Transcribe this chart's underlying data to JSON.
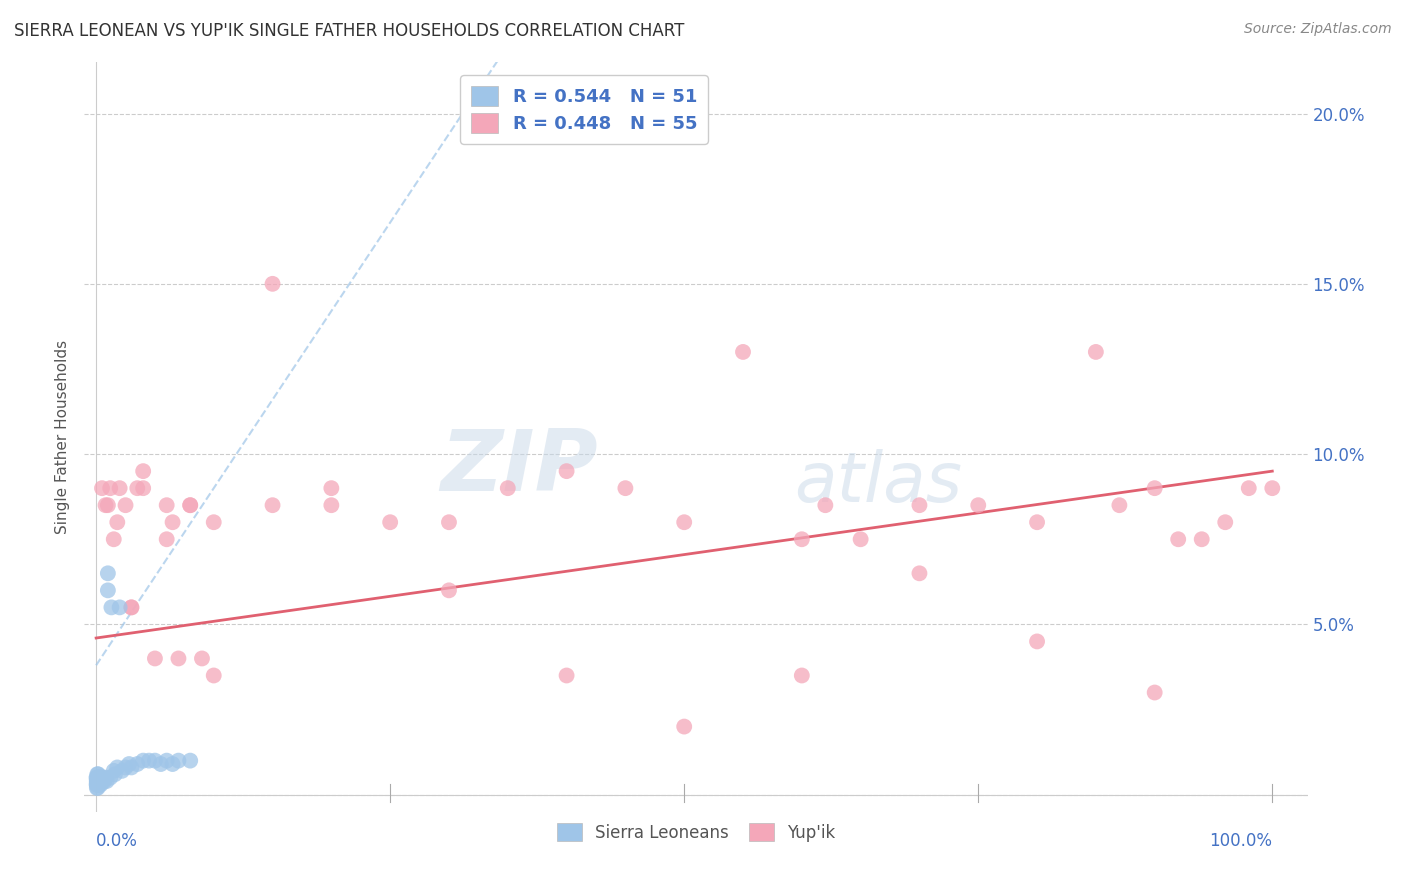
{
  "title": "SIERRA LEONEAN VS YUP'IK SINGLE FATHER HOUSEHOLDS CORRELATION CHART",
  "source": "Source: ZipAtlas.com",
  "ylabel": "Single Father Households",
  "blue_color": "#9fc5e8",
  "pink_color": "#f4a7b9",
  "trend_blue_dash": "#9fc5e8",
  "trend_pink_solid": "#e06070",
  "legend_r1": "R = 0.544",
  "legend_n1": "N = 51",
  "legend_r2": "R = 0.448",
  "legend_n2": "N = 55",
  "watermark_zip": "ZIP",
  "watermark_atlas": "atlas",
  "sierra_x": [
    0.0003,
    0.0004,
    0.0005,
    0.0006,
    0.0007,
    0.0008,
    0.0009,
    0.001,
    0.001,
    0.0012,
    0.0013,
    0.0014,
    0.0015,
    0.0016,
    0.0017,
    0.002,
    0.002,
    0.0022,
    0.0025,
    0.003,
    0.003,
    0.003,
    0.004,
    0.004,
    0.005,
    0.005,
    0.006,
    0.007,
    0.008,
    0.009,
    0.01,
    0.01,
    0.012,
    0.013,
    0.015,
    0.016,
    0.018,
    0.02,
    0.022,
    0.025,
    0.028,
    0.03,
    0.035,
    0.04,
    0.045,
    0.05,
    0.055,
    0.06,
    0.065,
    0.07,
    0.08
  ],
  "sierra_y": [
    0.005,
    0.003,
    0.004,
    0.002,
    0.005,
    0.003,
    0.004,
    0.006,
    0.003,
    0.004,
    0.002,
    0.005,
    0.004,
    0.003,
    0.006,
    0.005,
    0.003,
    0.004,
    0.005,
    0.004,
    0.003,
    0.005,
    0.004,
    0.003,
    0.005,
    0.004,
    0.005,
    0.004,
    0.005,
    0.004,
    0.06,
    0.065,
    0.005,
    0.055,
    0.007,
    0.006,
    0.008,
    0.055,
    0.007,
    0.008,
    0.009,
    0.008,
    0.009,
    0.01,
    0.01,
    0.01,
    0.009,
    0.01,
    0.009,
    0.01,
    0.01
  ],
  "yupik_x": [
    0.005,
    0.008,
    0.01,
    0.012,
    0.015,
    0.018,
    0.02,
    0.025,
    0.03,
    0.03,
    0.035,
    0.04,
    0.05,
    0.06,
    0.065,
    0.07,
    0.08,
    0.09,
    0.1,
    0.15,
    0.2,
    0.25,
    0.3,
    0.35,
    0.4,
    0.45,
    0.5,
    0.55,
    0.6,
    0.62,
    0.65,
    0.7,
    0.75,
    0.8,
    0.85,
    0.87,
    0.9,
    0.92,
    0.94,
    0.96,
    0.98,
    1.0,
    0.04,
    0.06,
    0.08,
    0.1,
    0.15,
    0.2,
    0.3,
    0.4,
    0.5,
    0.6,
    0.7,
    0.8,
    0.9
  ],
  "yupik_y": [
    0.09,
    0.085,
    0.085,
    0.09,
    0.075,
    0.08,
    0.09,
    0.085,
    0.055,
    0.055,
    0.09,
    0.095,
    0.04,
    0.085,
    0.08,
    0.04,
    0.085,
    0.04,
    0.035,
    0.085,
    0.085,
    0.08,
    0.08,
    0.09,
    0.095,
    0.09,
    0.08,
    0.13,
    0.075,
    0.085,
    0.075,
    0.085,
    0.085,
    0.08,
    0.13,
    0.085,
    0.09,
    0.075,
    0.075,
    0.08,
    0.09,
    0.09,
    0.09,
    0.075,
    0.085,
    0.08,
    0.15,
    0.09,
    0.06,
    0.035,
    0.02,
    0.035,
    0.065,
    0.045,
    0.03
  ],
  "ylim_min": -0.005,
  "ylim_max": 0.215,
  "xlim_min": -0.01,
  "xlim_max": 1.03,
  "yticks": [
    0.0,
    0.05,
    0.1,
    0.15,
    0.2
  ],
  "ytick_labels": [
    "",
    "5.0%",
    "10.0%",
    "15.0%",
    "20.0%"
  ],
  "grid_color": "#cccccc",
  "text_color": "#4472c4"
}
